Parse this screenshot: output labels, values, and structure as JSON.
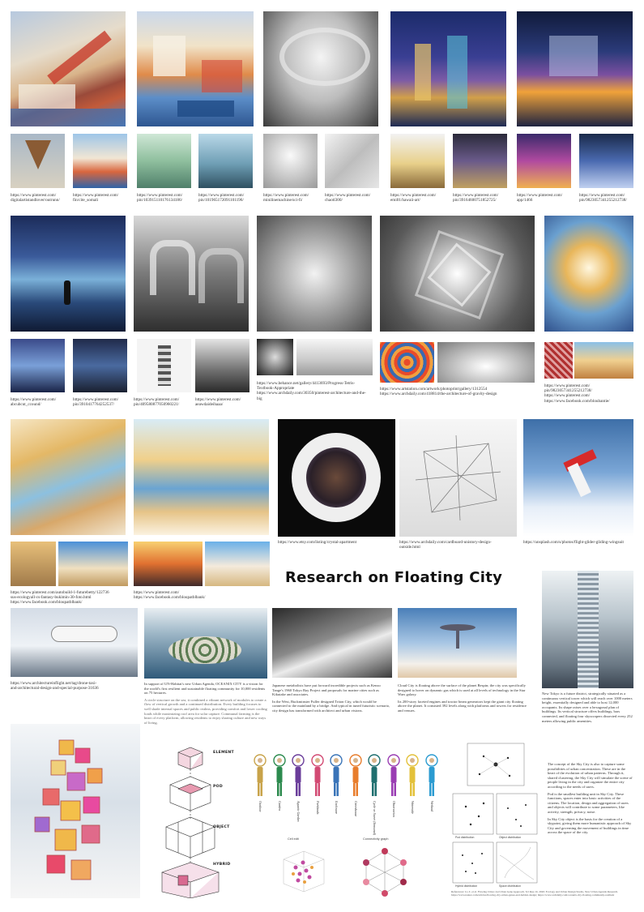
{
  "title": "Research on Floating City",
  "captions": {
    "r1a": [
      "https://www.pinterest.com/",
      "digitalartistandlover/outrunn/"
    ],
    "r1b": [
      "https://www.pinterest.com/",
      "fin/cite_somali"
    ],
    "r1c": [
      "https://www.pinterest.com/",
      "pin/103915110176134186/"
    ],
    "r1d": [
      "https://www.pinterest.com/",
      "pin/101965172091101196/"
    ],
    "r1e": [
      "https://www.pinterest.com/",
      "minilinemachine/sci-fi/"
    ],
    "r1f": [
      "https://www.pinterest.com/",
      "chaotl300/"
    ],
    "r1g": [
      "https://www.pinterest.com/",
      "emi01/hawaii-art/"
    ],
    "r1h": [
      "https://www.pinterest.com/",
      "pin/39164600751852725/"
    ],
    "r1i": [
      "https://www.pinterest.com/",
      "app/1466"
    ],
    "r1j": [
      "https://www.pinterest.com/",
      "pin/9823057341255212738/"
    ],
    "r2a": [
      "https://www.pinterest.com/",
      "abcubcut_ccound/"
    ],
    "r2b": [
      "https://www.pinterest.com/",
      "pin/3910417764252537/"
    ],
    "r2c": [
      "https://www.pinterest.com/",
      "pin/409580877050960221/"
    ],
    "r2d": [
      "https://www.pinterest.com/",
      "aeawdaideihaaa/"
    ],
    "r2e": [
      "https://www.behance.net/gallery/4413693/Progress-Tetris-",
      "Textbook-Appropriate",
      "https://www.archdaily.com/30350/pinterest-architecture-and-the-",
      "big"
    ],
    "r2f": [
      "https://www.artstation.com/artwork/photoprint/gallery/1312554",
      "https://www.archdaily.com/418814/the-architecture-of-gravity-design"
    ],
    "r2g": [
      "https://www.pinterest.com/",
      "pin/9823057341255212738/",
      "https://www.pinterest.com/",
      "https://www.facebook.com/bloubantie/"
    ],
    "r3a": [
      "https://www.pinterest.com/autobuild-1-futurebetty/122736",
      "sus-ecologyall-cs-fantasy-bukimin-30-foto.html",
      "https://www.facebook.com/bloupatblbank/"
    ],
    "r3b": [
      "https://www.pinterest.com/",
      "https://www.facebook.com/bloupatblbank/"
    ],
    "r3c": [
      "https://www.etsy.com/listing/crystal-apartment"
    ],
    "r3d": [
      "https://www.archdaily.com/cardboard-unistory-design-",
      "outside.html"
    ],
    "r3e": [
      "https://unsplash.com/s/photos/flight-glider-gliding-wingsuit"
    ],
    "r4a": [
      "https://www.architectureinflight.net/tag/drone-taxi-",
      "and-architectural-design-and-special-purpose-31636"
    ],
    "r4b": [
      "https://www.archdaily.com/oceanix-city"
    ]
  },
  "paragraphs": {
    "p1": [
      "In support of UN-Habitat's new Urban Agenda, OCEANIX CITY is a vision for the world's first resilient and sustainable floating community for 10,000 residents on 75 hectares.",
      "A circle structure on the sea, it combined a vibrant network of modules to create a flow of vertical growth and a continued distribution. Every building focuses to well shade internal spaces and public realms, providing comfort and lower cooling loads while maximizing roof area for solar capture. Communal farming is the heart of every platform, allowing residents to enjoy sharing culture and new ways of living."
    ],
    "p2": [
      "Japanese metabolists have put forward incredible projects such as Kenzo Tange's 1960 Tokyo Bay Project and proposals for marine cities such as Kikutake and associates.",
      "In the West, Buckminster Fuller designed Triton City, which would be connected to the mainland by a bridge. And typical in tuned futuristic scenario, city design has transformed with architect and urban visions."
    ],
    "p3": [
      "Cloud City is floating above the surface of the planet Bespin; the city was specifically designed to hover on dynamic gas which is used at all levels of technology in the Star Wars galaxy.",
      "Its 200-story faceted engines and tractor beam generators kept the giant city floating above the planet. It consisted 392 levels along with platforms and towers for residence and venues."
    ],
    "p4": [
      "New Tokyo is a future district, strategically situated as a continuous vertical tower which will reach over 1000 meters height, essentially designed and able to host 12,000 occupants. Its shape raises over a hexagonal plan of buildings. Its vertical structure offers buildings, bars connected, and floating four skyscrapers dissected every 252 meters allowing public amenities."
    ],
    "p5": [
      "The concept of the Sky City is also to capture some possibilities of urban concentration. These are in the heart of the evolution of urban patterns. Through it, shared clustering, the Sky City will simulate the scene of people living in the city and organize the entire city according to the needs of users.",
      "Pod is the smallest building unit in Sky City. These functions, spaces enter into basic activities of the citizens. The location, design and aggregation of users and objects will contribute to some parameters, like activity, strength, privacy, noise.",
      "In Sky City object is the basis for the creation of a skypoint, giving them more humanistic approach of Sky City and governing the movement of buildings in time across the space of the city."
    ],
    "refs": "References: Li, Z. et al. Flowing Cities: An Urban Gene Approach. Sci Rep 10, 2020; Ecology and Urban Design Studio, New Urban Agenda Research. https://www.nature.com/articles/flowing-city-urban-genes-and-habitat-design; https://www.archdaily.com/oceanix-city-floating-community-resilient"
  },
  "diagram": {
    "labels": [
      "ELEMENT",
      "POD",
      "OBJECT",
      "HYBRID"
    ]
  },
  "glyphs": {
    "names": [
      "Outdoor",
      "Garden",
      "Aquatic Garden",
      "Parklands",
      "Enclosure",
      "Greenhouse",
      "Cycle or Sweet (Seasonal)",
      "Observation",
      "Waterside",
      "Wetland"
    ],
    "colors": [
      "#c8a34a",
      "#2c8a4e",
      "#6a3d9a",
      "#d24a73",
      "#3a74b8",
      "#e87d2c",
      "#1f6f6f",
      "#9a3db3",
      "#e3c13a",
      "#2b9bd1"
    ]
  },
  "mini_titles": {
    "cube": "Cell edit",
    "network": "Connectivity graph"
  },
  "network_labels": [
    "Pod distribution",
    "Object distribution",
    "Hybrid distribution",
    "Space distribution"
  ]
}
